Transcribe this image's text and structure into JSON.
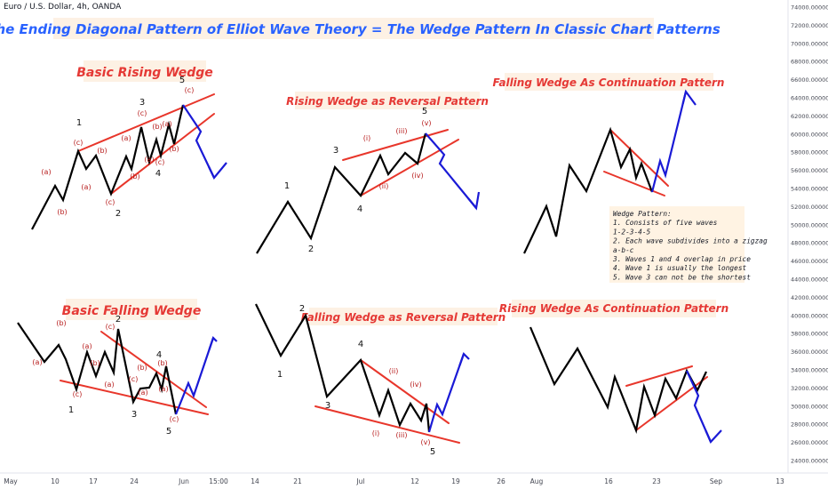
{
  "symbol": "Euro / U.S. Dollar, 4h, OANDA",
  "colors": {
    "background": "#ffffff",
    "main_title": "#2962ff",
    "panel_title": "#e53935",
    "title_bg": "#fdf1e4",
    "price_line": "#000000",
    "trend_line": "#e8362b",
    "projection": "#1a1ad6",
    "wave_label_dark": "#111111",
    "wave_label_red": "#b71c1c",
    "note_bg": "#fff3e3"
  },
  "chart_data": {
    "type": "line",
    "title": "The Ending Diagonal Pattern of Elliot Wave Theory = The Wedge Pattern In Classic Chart Patterns",
    "x_ticks": [
      "May",
      "10",
      "17",
      "24",
      "Jun",
      "15:00",
      "14",
      "21",
      "Jul",
      "12",
      "19",
      "26",
      "Aug",
      "16",
      "23",
      "Sep",
      "13"
    ],
    "y_ticks": [
      "74000.000000",
      "72000.000000",
      "70000.000000",
      "68000.000000",
      "66000.000000",
      "64000.000000",
      "62000.000000",
      "60000.000000",
      "58000.000000",
      "56000.000000",
      "54000.000000",
      "52000.000000",
      "50000.000000",
      "48000.000000",
      "46000.000000",
      "44000.000000",
      "42000.000000",
      "40000.000000",
      "38000.000000",
      "36000.000000",
      "34000.000000",
      "32000.000000",
      "30000.000000",
      "28000.000000",
      "26000.000000",
      "24000.000000"
    ],
    "ylim": [
      24000,
      74000
    ],
    "grid": false,
    "panels": [
      {
        "title": "Basic Rising Wedge",
        "price_path": [
          [
            36,
            258
          ],
          [
            62,
            209
          ],
          [
            71,
            225
          ],
          [
            88,
            170
          ],
          [
            97,
            190
          ],
          [
            108,
            175
          ],
          [
            125,
            218
          ],
          [
            142,
            176
          ],
          [
            148,
            190
          ],
          [
            159,
            143
          ],
          [
            168,
            182
          ],
          [
            176,
            157
          ],
          [
            181,
            175
          ],
          [
            190,
            140
          ],
          [
            196,
            162
          ],
          [
            206,
            118
          ]
        ],
        "trend_lines": [
          [
            [
              88,
              170
            ],
            [
              241,
              106
            ]
          ],
          [
            [
              125,
              218
            ],
            [
              241,
              128
            ]
          ]
        ],
        "projection": [
          [
            206,
            118
          ],
          [
            226,
            148
          ],
          [
            221,
            158
          ],
          [
            241,
            200
          ],
          [
            255,
            183
          ]
        ],
        "labels": [
          {
            "text": "1",
            "x": 89,
            "y": 141,
            "style": "dark"
          },
          {
            "text": "2",
            "x": 133,
            "y": 243,
            "style": "dark"
          },
          {
            "text": "3",
            "x": 160,
            "y": 118,
            "style": "dark"
          },
          {
            "text": "4",
            "x": 178,
            "y": 198,
            "style": "dark"
          },
          {
            "text": "5",
            "x": 205,
            "y": 93,
            "style": "dark"
          },
          {
            "text": "(a)",
            "x": 52,
            "y": 196,
            "style": "red"
          },
          {
            "text": "(b)",
            "x": 70,
            "y": 241,
            "style": "red"
          },
          {
            "text": "(c)",
            "x": 88,
            "y": 163,
            "style": "red"
          },
          {
            "text": "(a)",
            "x": 97,
            "y": 213,
            "style": "red"
          },
          {
            "text": "(b)",
            "x": 115,
            "y": 172,
            "style": "red"
          },
          {
            "text": "(c)",
            "x": 124,
            "y": 230,
            "style": "red"
          },
          {
            "text": "(a)",
            "x": 142,
            "y": 158,
            "style": "red"
          },
          {
            "text": "(b)",
            "x": 152,
            "y": 201,
            "style": "red"
          },
          {
            "text": "(c)",
            "x": 160,
            "y": 130,
            "style": "red"
          },
          {
            "text": "(a)",
            "x": 168,
            "y": 182,
            "style": "red"
          },
          {
            "text": "(b)",
            "x": 177,
            "y": 145,
            "style": "red"
          },
          {
            "text": "(c)",
            "x": 180,
            "y": 185,
            "style": "red"
          },
          {
            "text": "(a)",
            "x": 188,
            "y": 142,
            "style": "red"
          },
          {
            "text": "(b)",
            "x": 196,
            "y": 170,
            "style": "red"
          },
          {
            "text": "(c)",
            "x": 213,
            "y": 104,
            "style": "red"
          }
        ]
      },
      {
        "title": "Rising Wedge  as Reversal Pattern",
        "price_path": [
          [
            289,
            285
          ],
          [
            324,
            227
          ],
          [
            350,
            268
          ],
          [
            377,
            188
          ],
          [
            406,
            220
          ],
          [
            428,
            175
          ],
          [
            437,
            196
          ],
          [
            456,
            172
          ],
          [
            470,
            184
          ],
          [
            479,
            150
          ]
        ],
        "trend_lines": [
          [
            [
              386,
              180
            ],
            [
              504,
              146
            ]
          ],
          [
            [
              406,
              220
            ],
            [
              516,
              157
            ]
          ]
        ],
        "projection": [
          [
            479,
            150
          ],
          [
            500,
            174
          ],
          [
            495,
            184
          ],
          [
            536,
            234
          ],
          [
            539,
            216
          ]
        ],
        "labels": [
          {
            "text": "1",
            "x": 323,
            "y": 212,
            "style": "dark"
          },
          {
            "text": "2",
            "x": 350,
            "y": 283,
            "style": "dark"
          },
          {
            "text": "3",
            "x": 378,
            "y": 172,
            "style": "dark"
          },
          {
            "text": "4",
            "x": 405,
            "y": 238,
            "style": "dark"
          },
          {
            "text": "5",
            "x": 478,
            "y": 128,
            "style": "dark"
          },
          {
            "text": "(i)",
            "x": 413,
            "y": 158,
            "style": "red"
          },
          {
            "text": "(ii)",
            "x": 432,
            "y": 212,
            "style": "red"
          },
          {
            "text": "(iii)",
            "x": 452,
            "y": 150,
            "style": "red"
          },
          {
            "text": "(iv)",
            "x": 470,
            "y": 200,
            "style": "red"
          },
          {
            "text": "(v)",
            "x": 480,
            "y": 141,
            "style": "red"
          }
        ]
      },
      {
        "title": "Falling Wedge As Continuation Pattern",
        "price_path": [
          [
            590,
            285
          ],
          [
            615,
            232
          ],
          [
            626,
            266
          ],
          [
            641,
            186
          ],
          [
            660,
            215
          ],
          [
            687,
            146
          ],
          [
            699,
            188
          ],
          [
            709,
            168
          ],
          [
            716,
            200
          ],
          [
            722,
            184
          ],
          [
            734,
            216
          ]
        ],
        "trend_lines": [
          [
            [
              687,
              146
            ],
            [
              752,
              209
            ]
          ],
          [
            [
              680,
              193
            ],
            [
              748,
              220
            ]
          ]
        ],
        "projection": [
          [
            734,
            216
          ],
          [
            743,
            181
          ],
          [
            749,
            197
          ],
          [
            772,
            103
          ],
          [
            783,
            118
          ]
        ],
        "labels": []
      },
      {
        "title": "Basic Falling Wedge",
        "price_path": [
          [
            20,
            363
          ],
          [
            50,
            407
          ],
          [
            66,
            388
          ],
          [
            74,
            404
          ],
          [
            86,
            438
          ],
          [
            98,
            396
          ],
          [
            108,
            423
          ],
          [
            118,
            396
          ],
          [
            128,
            419
          ],
          [
            133,
            370
          ],
          [
            150,
            452
          ],
          [
            158,
            437
          ],
          [
            168,
            436
          ],
          [
            176,
            420
          ],
          [
            182,
            438
          ],
          [
            187,
            412
          ],
          [
            198,
            466
          ]
        ],
        "trend_lines": [
          [
            [
              114,
              373
            ],
            [
              232,
              458
            ]
          ],
          [
            [
              68,
              428
            ],
            [
              234,
              466
            ]
          ]
        ],
        "projection": [
          [
            198,
            466
          ],
          [
            212,
            431
          ],
          [
            218,
            445
          ],
          [
            240,
            380
          ],
          [
            244,
            384
          ]
        ],
        "labels": [
          {
            "text": "1",
            "x": 80,
            "y": 464,
            "style": "dark"
          },
          {
            "text": "2",
            "x": 133,
            "y": 362,
            "style": "dark"
          },
          {
            "text": "3",
            "x": 151,
            "y": 469,
            "style": "dark"
          },
          {
            "text": "4",
            "x": 179,
            "y": 402,
            "style": "dark"
          },
          {
            "text": "5",
            "x": 190,
            "y": 488,
            "style": "dark"
          },
          {
            "text": "(a)",
            "x": 42,
            "y": 410,
            "style": "red"
          },
          {
            "text": "(b)",
            "x": 69,
            "y": 366,
            "style": "red"
          },
          {
            "text": "(c)",
            "x": 87,
            "y": 446,
            "style": "red"
          },
          {
            "text": "(a)",
            "x": 98,
            "y": 392,
            "style": "red"
          },
          {
            "text": "(b)",
            "x": 107,
            "y": 411,
            "style": "red"
          },
          {
            "text": "(c)",
            "x": 124,
            "y": 370,
            "style": "red"
          },
          {
            "text": "(a)",
            "x": 123,
            "y": 435,
            "style": "red"
          },
          {
            "text": "(b)",
            "x": 160,
            "y": 416,
            "style": "red"
          },
          {
            "text": "(c)",
            "x": 150,
            "y": 429,
            "style": "red"
          },
          {
            "text": "(a)",
            "x": 161,
            "y": 444,
            "style": "red"
          },
          {
            "text": "(b)",
            "x": 183,
            "y": 411,
            "style": "red"
          },
          {
            "text": "(a)",
            "x": 184,
            "y": 440,
            "style": "red"
          },
          {
            "text": "(c)",
            "x": 196,
            "y": 474,
            "style": "red"
          }
        ]
      },
      {
        "title": "Falling Wedge as Reversal Pattern",
        "price_path": [
          [
            288,
            342
          ],
          [
            316,
            400
          ],
          [
            344,
            355
          ],
          [
            368,
            446
          ],
          [
            406,
            405
          ],
          [
            427,
            467
          ],
          [
            437,
            439
          ],
          [
            450,
            478
          ],
          [
            462,
            454
          ],
          [
            474,
            473
          ],
          [
            480,
            454
          ],
          [
            483,
            486
          ]
        ],
        "trend_lines": [
          [
            [
              406,
              405
            ],
            [
              505,
              476
            ]
          ],
          [
            [
              355,
              457
            ],
            [
              517,
              498
            ]
          ]
        ],
        "projection": [
          [
            483,
            486
          ],
          [
            492,
            455
          ],
          [
            498,
            466
          ],
          [
            522,
            398
          ],
          [
            528,
            404
          ]
        ],
        "labels": [
          {
            "text": "1",
            "x": 315,
            "y": 424,
            "style": "dark"
          },
          {
            "text": "2",
            "x": 340,
            "y": 350,
            "style": "dark"
          },
          {
            "text": "3",
            "x": 369,
            "y": 459,
            "style": "dark"
          },
          {
            "text": "4",
            "x": 406,
            "y": 390,
            "style": "dark"
          },
          {
            "text": "5",
            "x": 487,
            "y": 511,
            "style": "dark"
          },
          {
            "text": "(i)",
            "x": 423,
            "y": 490,
            "style": "red"
          },
          {
            "text": "(ii)",
            "x": 443,
            "y": 420,
            "style": "red"
          },
          {
            "text": "(iii)",
            "x": 452,
            "y": 492,
            "style": "red"
          },
          {
            "text": "(iv)",
            "x": 468,
            "y": 435,
            "style": "red"
          },
          {
            "text": "(v)",
            "x": 479,
            "y": 500,
            "style": "red"
          }
        ]
      },
      {
        "title": "Rising Wedge As Continuation Pattern",
        "price_path": [
          [
            597,
            368
          ],
          [
            624,
            432
          ],
          [
            650,
            392
          ],
          [
            684,
            458
          ],
          [
            692,
            424
          ],
          [
            716,
            484
          ],
          [
            725,
            435
          ],
          [
            737,
            467
          ],
          [
            749,
            426
          ],
          [
            761,
            448
          ],
          [
            773,
            417
          ],
          [
            785,
            439
          ],
          [
            795,
            418
          ]
        ],
        "trend_lines": [
          [
            [
              705,
              434
            ],
            [
              779,
              412
            ]
          ],
          [
            [
              716,
              484
            ],
            [
              796,
              424
            ]
          ]
        ],
        "projection": [
          [
            773,
            417
          ],
          [
            786,
            445
          ],
          [
            782,
            456
          ],
          [
            800,
            497
          ],
          [
            812,
            484
          ]
        ],
        "labels": []
      }
    ]
  },
  "note": {
    "lines": [
      "Wedge Pattern:",
      "1. Consists of five waves",
      "1-2-3-4-5",
      "2. Each wave subdivides into a zigzag",
      "a-b-c",
      "3. Waves 1 and 4 overlap in price",
      "4. Wave 1 is usually the longest",
      "5. Wave 3 can not be the shortest"
    ]
  }
}
